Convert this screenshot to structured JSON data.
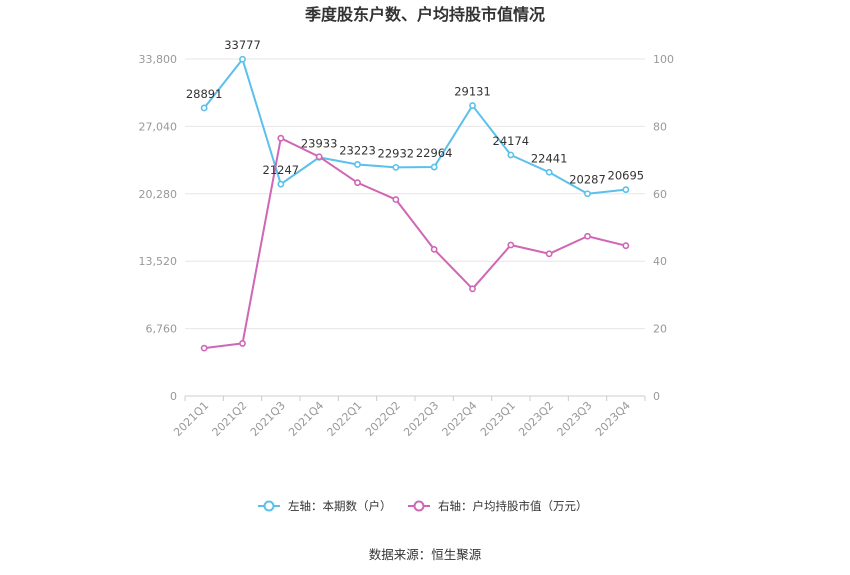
{
  "chart_data": {
    "type": "line",
    "title": "季度股东户数、户均持股市值情况",
    "categories": [
      "2021Q1",
      "2021Q2",
      "2021Q3",
      "2021Q4",
      "2022Q1",
      "2022Q2",
      "2022Q3",
      "2022Q4",
      "2023Q1",
      "2023Q2",
      "2023Q3",
      "2023Q4"
    ],
    "left_axis": {
      "ylim": [
        0,
        33800
      ],
      "ticks": [
        "0",
        "6,760",
        "13,520",
        "20,280",
        "27,040",
        "33,800"
      ],
      "tick_values": [
        0,
        6760,
        13520,
        20280,
        27040,
        33800
      ]
    },
    "right_axis": {
      "ylim": [
        0,
        100
      ],
      "ticks": [
        "0",
        "20",
        "40",
        "60",
        "80",
        "100"
      ],
      "tick_values": [
        0,
        20,
        40,
        60,
        80,
        100
      ]
    },
    "series": [
      {
        "name": "左轴：本期数（户）",
        "axis": "left",
        "color": "#5bc0eb",
        "values": [
          28891,
          33777,
          21247,
          23933,
          23223,
          22932,
          22964,
          29131,
          24174,
          22441,
          20287,
          20695
        ],
        "labels": [
          "28891",
          "33777",
          "21247",
          "23933",
          "23223",
          "22932",
          "22964",
          "29131",
          "24174",
          "22441",
          "20287",
          "20695"
        ]
      },
      {
        "name": "右轴：户均持股市值（万元）",
        "axis": "right",
        "color": "#d066b4",
        "values": [
          14.2,
          15.6,
          76.5,
          71.0,
          63.3,
          58.3,
          43.5,
          31.8,
          44.8,
          42.2,
          47.4,
          44.6
        ]
      }
    ],
    "legend": "bottom-center",
    "grid": true
  },
  "source_text": "数据来源：恒生聚源"
}
